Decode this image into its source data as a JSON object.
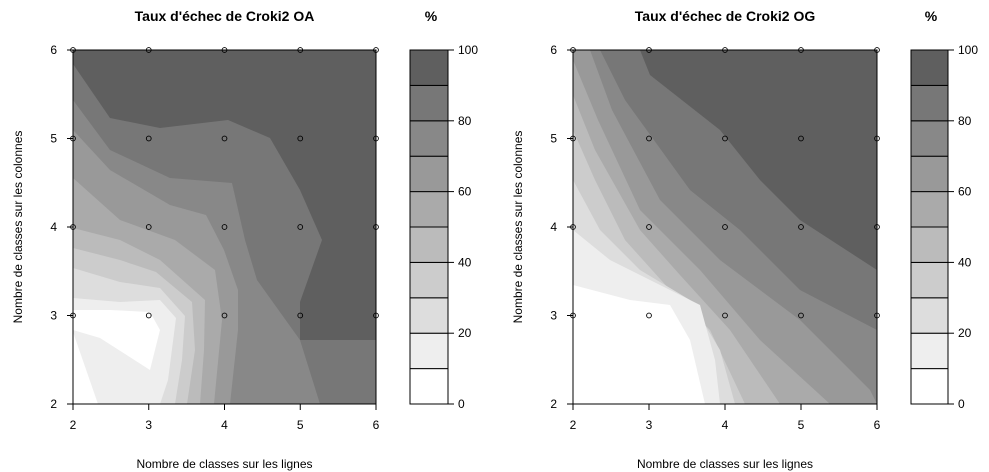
{
  "chart_data": [
    {
      "type": "heatmap",
      "subtype": "filled-contour",
      "title": "Taux d'échec de Croki2 OA",
      "xlabel": "Nombre de classes sur les lignes",
      "ylabel": "Nombre de classes sur les colonnes",
      "x": [
        2,
        3,
        4,
        5,
        6
      ],
      "y": [
        2,
        3,
        4,
        5,
        6
      ],
      "xlim": [
        2,
        6
      ],
      "ylim": [
        2,
        6
      ],
      "x_ticks": [
        "2",
        "3",
        "4",
        "5",
        "6"
      ],
      "y_ticks": [
        "2",
        "3",
        "4",
        "5",
        "6"
      ],
      "points": [
        {
          "x": 2,
          "y": 3
        },
        {
          "x": 3,
          "y": 3
        },
        {
          "x": 4,
          "y": 3
        },
        {
          "x": 5,
          "y": 3
        },
        {
          "x": 6,
          "y": 3
        },
        {
          "x": 2,
          "y": 4
        },
        {
          "x": 3,
          "y": 4
        },
        {
          "x": 4,
          "y": 4
        },
        {
          "x": 5,
          "y": 4
        },
        {
          "x": 6,
          "y": 4
        },
        {
          "x": 2,
          "y": 5
        },
        {
          "x": 3,
          "y": 5
        },
        {
          "x": 4,
          "y": 5
        },
        {
          "x": 5,
          "y": 5
        },
        {
          "x": 6,
          "y": 5
        },
        {
          "x": 2,
          "y": 6
        },
        {
          "x": 3,
          "y": 6
        },
        {
          "x": 4,
          "y": 6
        },
        {
          "x": 5,
          "y": 6
        },
        {
          "x": 6,
          "y": 6
        }
      ],
      "legend": {
        "title": "%",
        "levels": [
          0,
          10,
          20,
          30,
          40,
          50,
          60,
          70,
          80,
          90,
          100
        ],
        "ticks": [
          "0",
          "20",
          "40",
          "60",
          "80",
          "100"
        ],
        "colors": [
          "#ffffff",
          "#eeeeee",
          "#dddddd",
          "#cccccc",
          "#bbbbbb",
          "#aaaaaa",
          "#999999",
          "#888888",
          "#777777",
          "#5f5f5f"
        ]
      }
    },
    {
      "type": "heatmap",
      "subtype": "filled-contour",
      "title": "Taux d'échec de Croki2 OG",
      "xlabel": "Nombre de classes sur les lignes",
      "ylabel": "Nombre de classes sur les colonnes",
      "x": [
        2,
        3,
        4,
        5,
        6
      ],
      "y": [
        2,
        3,
        4,
        5,
        6
      ],
      "xlim": [
        2,
        6
      ],
      "ylim": [
        2,
        6
      ],
      "x_ticks": [
        "2",
        "3",
        "4",
        "5",
        "6"
      ],
      "y_ticks": [
        "2",
        "3",
        "4",
        "5",
        "6"
      ],
      "points": [
        {
          "x": 2,
          "y": 3
        },
        {
          "x": 3,
          "y": 3
        },
        {
          "x": 4,
          "y": 3
        },
        {
          "x": 5,
          "y": 3
        },
        {
          "x": 6,
          "y": 3
        },
        {
          "x": 2,
          "y": 4
        },
        {
          "x": 3,
          "y": 4
        },
        {
          "x": 4,
          "y": 4
        },
        {
          "x": 5,
          "y": 4
        },
        {
          "x": 6,
          "y": 4
        },
        {
          "x": 2,
          "y": 5
        },
        {
          "x": 3,
          "y": 5
        },
        {
          "x": 4,
          "y": 5
        },
        {
          "x": 5,
          "y": 5
        },
        {
          "x": 6,
          "y": 5
        },
        {
          "x": 2,
          "y": 6
        },
        {
          "x": 3,
          "y": 6
        },
        {
          "x": 4,
          "y": 6
        },
        {
          "x": 5,
          "y": 6
        },
        {
          "x": 6,
          "y": 6
        }
      ],
      "legend": {
        "title": "%",
        "levels": [
          0,
          10,
          20,
          30,
          40,
          50,
          60,
          70,
          80,
          90,
          100
        ],
        "ticks": [
          "0",
          "20",
          "40",
          "60",
          "80",
          "100"
        ],
        "colors": [
          "#ffffff",
          "#eeeeee",
          "#dddddd",
          "#cccccc",
          "#bbbbbb",
          "#aaaaaa",
          "#999999",
          "#888888",
          "#777777",
          "#5f5f5f"
        ]
      }
    }
  ]
}
